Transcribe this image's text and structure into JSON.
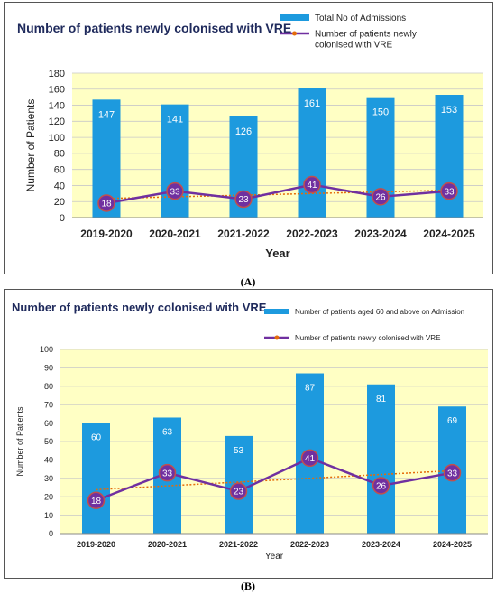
{
  "panels": {
    "a_label": "(A)",
    "b_label": "(B)"
  },
  "colors": {
    "plot_bg": "#ffffc4",
    "bar": "#1d9ade",
    "line": "#7030a0",
    "marker_ring": "#c0504d",
    "trend": "#e46c0a",
    "grid": "#c8c8c8"
  },
  "chart_data": [
    {
      "type": "bar",
      "title": "Number of patients newly colonised with VRE",
      "xlabel": "Year",
      "ylabel": "Number of Patients",
      "ylim": [
        0,
        180
      ],
      "ytick_step": 20,
      "grid": true,
      "legend_position": "top-right",
      "categories": [
        "2019-2020",
        "2020-2021",
        "2021-2022",
        "2022-2023",
        "2023-2024",
        "2024-2025"
      ],
      "series": [
        {
          "name": "Total No of Admissions",
          "kind": "bar",
          "values": [
            147,
            141,
            126,
            161,
            150,
            153
          ]
        },
        {
          "name": "Number of patients newly colonised with VRE",
          "kind": "line",
          "values": [
            18,
            33,
            23,
            41,
            26,
            33
          ]
        }
      ],
      "trendline": {
        "of": "line",
        "style": "dotted"
      }
    },
    {
      "type": "bar",
      "title": "Number of patients newly colonised with VRE",
      "xlabel": "Year",
      "ylabel": "Number of Patients",
      "ylim": [
        0,
        100
      ],
      "ytick_step": 10,
      "grid": true,
      "legend_position": "top-right",
      "categories": [
        "2019-2020",
        "2020-2021",
        "2021-2022",
        "2022-2023",
        "2023-2024",
        "2024-2025"
      ],
      "series": [
        {
          "name": "Number of patients aged 60 and above on Admission",
          "kind": "bar",
          "values": [
            60,
            63,
            53,
            87,
            81,
            69
          ]
        },
        {
          "name": "Number of patients newly colonised with VRE",
          "kind": "line",
          "values": [
            18,
            33,
            23,
            41,
            26,
            33
          ]
        }
      ],
      "trendline": {
        "of": "line",
        "style": "dotted"
      }
    }
  ]
}
